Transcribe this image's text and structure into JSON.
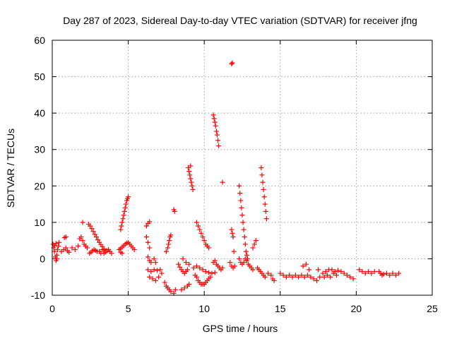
{
  "chart_data": {
    "type": "scatter",
    "title": "Day 287 of 2023, Sidereal Day-to-day VTEC variation (SDTVAR) for receiver jfng",
    "xlabel": "GPS time / hours",
    "ylabel": "SDTVAR / TECUs",
    "xlim": [
      0,
      25
    ],
    "ylim": [
      -10,
      60
    ],
    "xticks": [
      "0",
      "5",
      "10",
      "15",
      "20",
      "25"
    ],
    "yticks": [
      "-10",
      "0",
      "10",
      "20",
      "30",
      "40",
      "50",
      "60"
    ],
    "marker": "plus",
    "color": "#ff0000",
    "grid": true,
    "series": [
      {
        "name": "SDTVAR",
        "points": [
          [
            0.05,
            4
          ],
          [
            0.1,
            3
          ],
          [
            0.15,
            2
          ],
          [
            0.2,
            0.5
          ],
          [
            0.25,
            -0.5
          ],
          [
            0.3,
            1
          ],
          [
            0.35,
            2.5
          ],
          [
            0.4,
            3.5
          ],
          [
            0.45,
            4.5
          ],
          [
            0.25,
            4.2
          ],
          [
            0.15,
            3.6
          ],
          [
            0.3,
            0
          ],
          [
            0.6,
            2
          ],
          [
            0.75,
            2.5
          ],
          [
            0.9,
            3
          ],
          [
            1.0,
            2.2
          ],
          [
            1.1,
            1.8
          ],
          [
            0.8,
            5.8
          ],
          [
            0.9,
            6
          ],
          [
            1.3,
            3
          ],
          [
            1.5,
            2.5
          ],
          [
            1.7,
            3.5
          ],
          [
            1.8,
            5.5
          ],
          [
            1.9,
            6
          ],
          [
            2.0,
            5
          ],
          [
            2.0,
            10
          ],
          [
            2.1,
            4
          ],
          [
            2.2,
            3.5
          ],
          [
            2.3,
            3
          ],
          [
            2.45,
            1.5
          ],
          [
            2.55,
            1.8
          ],
          [
            2.65,
            2.2
          ],
          [
            2.75,
            2.5
          ],
          [
            2.85,
            2.3
          ],
          [
            2.95,
            2
          ],
          [
            3.1,
            2
          ],
          [
            3.2,
            1.5
          ],
          [
            3.3,
            2.5
          ],
          [
            3.4,
            1.5
          ],
          [
            3.5,
            1.8
          ],
          [
            3.6,
            2.2
          ],
          [
            3.7,
            2.5
          ],
          [
            3.8,
            2
          ],
          [
            3.9,
            1.5
          ],
          [
            2.4,
            9.5
          ],
          [
            2.5,
            9
          ],
          [
            2.6,
            8.3
          ],
          [
            2.7,
            7.5
          ],
          [
            2.8,
            6.7
          ],
          [
            2.9,
            6
          ],
          [
            3.0,
            5.2
          ],
          [
            3.1,
            4.5
          ],
          [
            3.2,
            3.9
          ],
          [
            3.3,
            3.3
          ],
          [
            3.4,
            2.7
          ],
          [
            3.5,
            2.2
          ],
          [
            4.5,
            8
          ],
          [
            4.55,
            9
          ],
          [
            4.6,
            10
          ],
          [
            4.65,
            11
          ],
          [
            4.7,
            12
          ],
          [
            4.75,
            13
          ],
          [
            4.8,
            14
          ],
          [
            4.85,
            15
          ],
          [
            4.9,
            16
          ],
          [
            4.95,
            16.5
          ],
          [
            5.0,
            17
          ],
          [
            4.4,
            2.5
          ],
          [
            4.5,
            2.8
          ],
          [
            4.6,
            3.2
          ],
          [
            4.7,
            3.6
          ],
          [
            4.8,
            4
          ],
          [
            4.9,
            4.3
          ],
          [
            5.0,
            4.5
          ],
          [
            5.1,
            4
          ],
          [
            5.2,
            3.5
          ],
          [
            5.3,
            3
          ],
          [
            5.4,
            2.5
          ],
          [
            4.5,
            1.8
          ],
          [
            4.6,
            1.5
          ],
          [
            6.2,
            9
          ],
          [
            6.3,
            9.7
          ],
          [
            6.4,
            10.2
          ],
          [
            6.2,
            6
          ],
          [
            6.3,
            4.5
          ],
          [
            6.4,
            3
          ],
          [
            6.3,
            0.5
          ],
          [
            6.4,
            -0.5
          ],
          [
            6.5,
            -1
          ],
          [
            6.7,
            0
          ],
          [
            6.8,
            -1
          ],
          [
            6.3,
            -3
          ],
          [
            6.5,
            -3.5
          ],
          [
            6.7,
            -3
          ],
          [
            6.9,
            -3.2
          ],
          [
            7.1,
            -3
          ],
          [
            6.4,
            -5
          ],
          [
            6.6,
            -5.5
          ],
          [
            6.8,
            -6
          ],
          [
            7.0,
            -5
          ],
          [
            7.2,
            -4
          ],
          [
            7.4,
            -6.5
          ],
          [
            7.5,
            -7.5
          ],
          [
            7.6,
            -8
          ],
          [
            7.7,
            -8.5
          ],
          [
            7.8,
            -9
          ],
          [
            8.0,
            -9.5
          ],
          [
            8.1,
            -8.5
          ],
          [
            7.5,
            2
          ],
          [
            7.6,
            3
          ],
          [
            7.65,
            4
          ],
          [
            7.7,
            5
          ],
          [
            7.75,
            6
          ],
          [
            7.8,
            6.5
          ],
          [
            8.0,
            13.5
          ],
          [
            8.05,
            13
          ],
          [
            8.3,
            -1.5
          ],
          [
            8.4,
            -2.3
          ],
          [
            8.5,
            -3
          ],
          [
            8.6,
            -3.5
          ],
          [
            8.7,
            -4
          ],
          [
            8.8,
            -3.5
          ],
          [
            8.9,
            -3
          ],
          [
            8.5,
            -8.5
          ],
          [
            8.7,
            -8
          ],
          [
            8.9,
            -7.5
          ],
          [
            9.0,
            -7
          ],
          [
            8.6,
            0
          ],
          [
            8.8,
            -1
          ],
          [
            9.0,
            -1.5
          ],
          [
            8.95,
            25
          ],
          [
            9.0,
            24
          ],
          [
            9.05,
            23
          ],
          [
            9.1,
            22
          ],
          [
            9.15,
            21
          ],
          [
            9.2,
            20
          ],
          [
            9.25,
            19
          ],
          [
            9.1,
            25.5
          ],
          [
            9.3,
            -2.5
          ],
          [
            9.5,
            -2
          ],
          [
            9.7,
            -2.5
          ],
          [
            9.9,
            -3
          ],
          [
            10.1,
            -3.5
          ],
          [
            10.3,
            -3.8
          ],
          [
            10.5,
            -4
          ],
          [
            10.7,
            -3.8
          ],
          [
            9.4,
            -4.5
          ],
          [
            9.5,
            -5
          ],
          [
            9.6,
            -6
          ],
          [
            9.7,
            -6.5
          ],
          [
            9.8,
            -7
          ],
          [
            9.9,
            -7
          ],
          [
            10.0,
            -7
          ],
          [
            10.1,
            -6.5
          ],
          [
            10.2,
            -6
          ],
          [
            10.3,
            -5.5
          ],
          [
            10.4,
            -5
          ],
          [
            9.5,
            10
          ],
          [
            9.6,
            9
          ],
          [
            9.7,
            8
          ],
          [
            9.8,
            7
          ],
          [
            9.9,
            6
          ],
          [
            10.0,
            5
          ],
          [
            10.1,
            4
          ],
          [
            10.2,
            3.5
          ],
          [
            10.3,
            3
          ],
          [
            10.6,
            39.5
          ],
          [
            10.65,
            38.5
          ],
          [
            10.7,
            37.5
          ],
          [
            10.75,
            36.5
          ],
          [
            10.8,
            35
          ],
          [
            10.85,
            34
          ],
          [
            10.9,
            32.5
          ],
          [
            10.95,
            31
          ],
          [
            11.2,
            21
          ],
          [
            10.6,
            -1
          ],
          [
            10.7,
            -0.5
          ],
          [
            10.8,
            -1.5
          ],
          [
            10.9,
            -2
          ],
          [
            11.0,
            -2.5
          ],
          [
            11.1,
            -3
          ],
          [
            11.2,
            -2.5
          ],
          [
            11.7,
            -1
          ],
          [
            11.8,
            -2
          ],
          [
            11.9,
            -2.5
          ],
          [
            12.0,
            -2
          ],
          [
            11.8,
            53.5
          ],
          [
            11.85,
            53.8
          ],
          [
            11.8,
            8
          ],
          [
            11.85,
            7
          ],
          [
            11.9,
            6
          ],
          [
            11.95,
            2
          ],
          [
            12.3,
            20
          ],
          [
            12.35,
            18
          ],
          [
            12.4,
            16
          ],
          [
            12.45,
            14
          ],
          [
            12.5,
            12
          ],
          [
            12.55,
            10
          ],
          [
            12.6,
            8
          ],
          [
            12.65,
            6
          ],
          [
            12.7,
            4
          ],
          [
            12.75,
            2
          ],
          [
            12.8,
            1
          ],
          [
            12.85,
            0
          ],
          [
            12.3,
            0
          ],
          [
            12.4,
            -1
          ],
          [
            12.5,
            -1.5
          ],
          [
            12.6,
            -1
          ],
          [
            12.7,
            0
          ],
          [
            12.8,
            -0.5
          ],
          [
            12.9,
            -1.5
          ],
          [
            13.0,
            -2
          ],
          [
            13.1,
            -2.5
          ],
          [
            13.2,
            -3
          ],
          [
            13.2,
            3
          ],
          [
            13.3,
            4
          ],
          [
            13.4,
            5
          ],
          [
            13.75,
            25
          ],
          [
            13.8,
            23
          ],
          [
            13.85,
            21
          ],
          [
            13.9,
            19
          ],
          [
            13.95,
            17
          ],
          [
            14.0,
            15
          ],
          [
            14.05,
            13
          ],
          [
            14.1,
            11
          ],
          [
            13.5,
            -2.5
          ],
          [
            13.6,
            -3
          ],
          [
            13.7,
            -3.5
          ],
          [
            13.8,
            -4
          ],
          [
            13.9,
            -4.5
          ],
          [
            14.0,
            -5
          ],
          [
            14.2,
            -4
          ],
          [
            14.4,
            -4.5
          ],
          [
            14.5,
            -5.5
          ],
          [
            14.6,
            -6
          ],
          [
            15.0,
            -4
          ],
          [
            15.2,
            -4.5
          ],
          [
            15.4,
            -5
          ],
          [
            15.6,
            -4.5
          ],
          [
            15.8,
            -5
          ],
          [
            16.0,
            -4.5
          ],
          [
            16.2,
            -5
          ],
          [
            16.4,
            -4.5
          ],
          [
            16.6,
            -5
          ],
          [
            16.8,
            -4.5
          ],
          [
            17.0,
            -5
          ],
          [
            17.2,
            -5.5
          ],
          [
            17.4,
            -6
          ],
          [
            17.6,
            -5
          ],
          [
            17.8,
            -4
          ],
          [
            18.0,
            -3.5
          ],
          [
            18.2,
            -3
          ],
          [
            18.4,
            -3
          ],
          [
            18.6,
            -3.5
          ],
          [
            18.8,
            -3.2
          ],
          [
            19.0,
            -3.5
          ],
          [
            19.2,
            -4
          ],
          [
            19.4,
            -4.5
          ],
          [
            19.6,
            -5
          ],
          [
            19.8,
            -5.5
          ],
          [
            16.5,
            -2
          ],
          [
            16.7,
            -1.5
          ],
          [
            16.9,
            -3
          ],
          [
            17.5,
            -3
          ],
          [
            17.9,
            -5
          ],
          [
            18.1,
            -4.5
          ],
          [
            18.3,
            -5
          ],
          [
            18.5,
            -4
          ],
          [
            18.7,
            -4.5
          ],
          [
            20.2,
            -3
          ],
          [
            20.4,
            -3.5
          ],
          [
            20.6,
            -4
          ],
          [
            20.8,
            -3.5
          ],
          [
            21.0,
            -4
          ],
          [
            21.2,
            -3.5
          ],
          [
            21.5,
            -3.5
          ],
          [
            21.6,
            -4
          ],
          [
            21.7,
            -4.5
          ],
          [
            21.8,
            -4.2
          ],
          [
            22.0,
            -4
          ],
          [
            22.2,
            -4.5
          ],
          [
            22.4,
            -4
          ],
          [
            22.6,
            -4.5
          ],
          [
            22.8,
            -4
          ]
        ]
      }
    ]
  }
}
